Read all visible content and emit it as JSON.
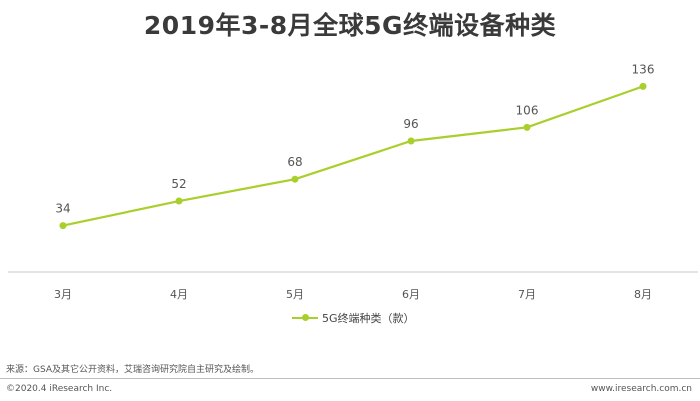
{
  "title": "2019年3-8月全球5G终端设备种类",
  "source": "来源：GSA及其它公开资料，艾瑞咨询研究院自主研究及绘制。",
  "copyright": "©2020.4 iResearch Inc.",
  "website": "www.iresearch.com.cn",
  "colors": {
    "series": "#a9cf2c",
    "axis": "#c8c8c8",
    "label": "#555555"
  },
  "chart_data": {
    "type": "line",
    "title": "2019年3-8月全球5G终端设备种类",
    "categories": [
      "3月",
      "4月",
      "5月",
      "6月",
      "7月",
      "8月"
    ],
    "series": [
      {
        "name": "5G终端种类（款）",
        "values": [
          34,
          52,
          68,
          96,
          106,
          136
        ]
      }
    ],
    "ylim": [
      0,
      170
    ],
    "grid": false,
    "legend": "bottom"
  }
}
